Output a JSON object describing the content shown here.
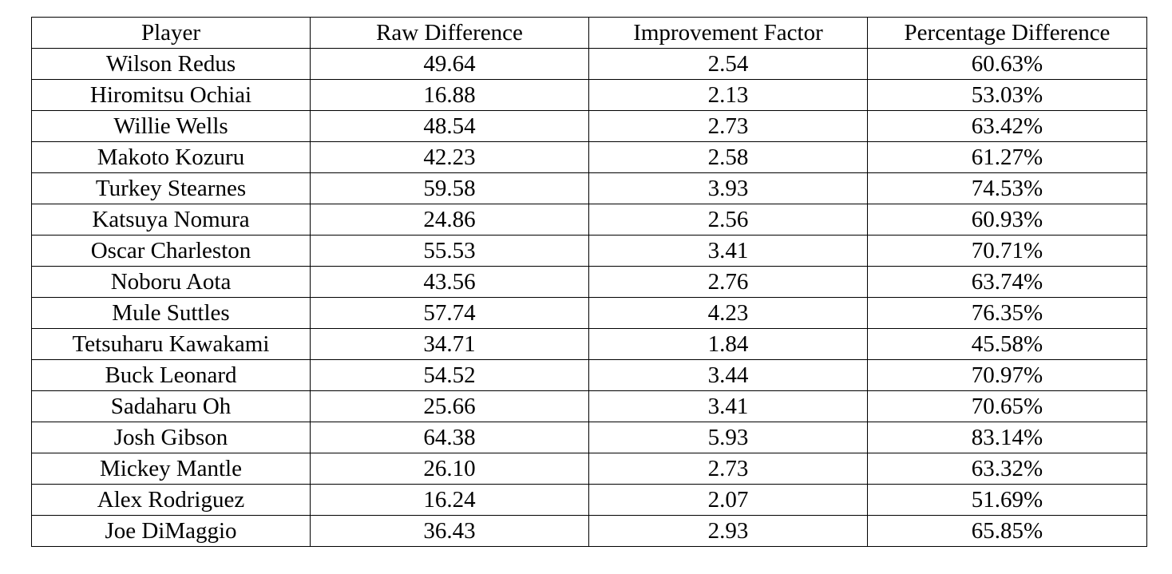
{
  "table": {
    "headers": [
      "Player",
      "Raw Difference",
      "Improvement Factor",
      "Percentage Difference"
    ],
    "rows": [
      [
        "Wilson Redus",
        "49.64",
        "2.54",
        "60.63%"
      ],
      [
        "Hiromitsu Ochiai",
        "16.88",
        "2.13",
        "53.03%"
      ],
      [
        "Willie Wells",
        "48.54",
        "2.73",
        "63.42%"
      ],
      [
        "Makoto Kozuru",
        "42.23",
        "2.58",
        "61.27%"
      ],
      [
        "Turkey Stearnes",
        "59.58",
        "3.93",
        "74.53%"
      ],
      [
        "Katsuya Nomura",
        "24.86",
        "2.56",
        "60.93%"
      ],
      [
        "Oscar Charleston",
        "55.53",
        "3.41",
        "70.71%"
      ],
      [
        "Noboru Aota",
        "43.56",
        "2.76",
        "63.74%"
      ],
      [
        "Mule Suttles",
        "57.74",
        "4.23",
        "76.35%"
      ],
      [
        "Tetsuharu Kawakami",
        "34.71",
        "1.84",
        "45.58%"
      ],
      [
        "Buck Leonard",
        "54.52",
        "3.44",
        "70.97%"
      ],
      [
        "Sadaharu Oh",
        "25.66",
        "3.41",
        "70.65%"
      ],
      [
        "Josh Gibson",
        "64.38",
        "5.93",
        "83.14%"
      ],
      [
        "Mickey Mantle",
        "26.10",
        "2.73",
        "63.32%"
      ],
      [
        "Alex Rodriguez",
        "16.24",
        "2.07",
        "51.69%"
      ],
      [
        "Joe DiMaggio",
        "36.43",
        "2.93",
        "65.85%"
      ]
    ]
  }
}
